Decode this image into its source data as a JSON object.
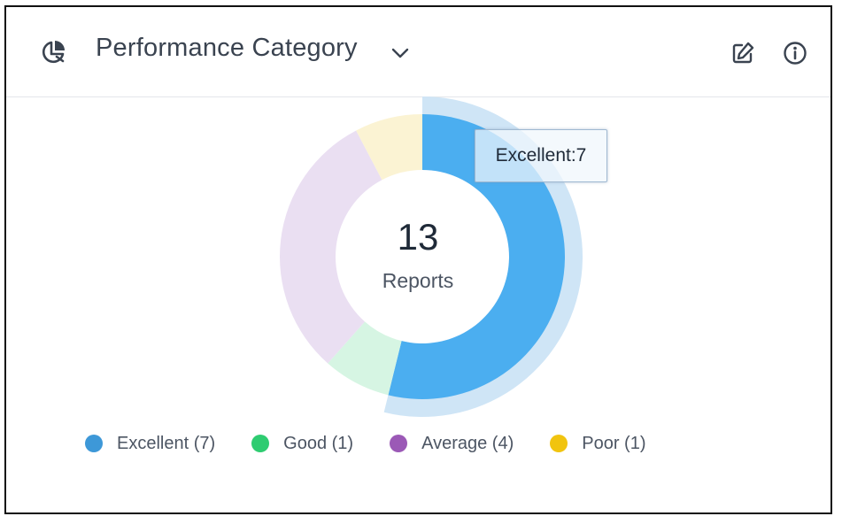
{
  "header": {
    "title": "Performance Category"
  },
  "chart_data": {
    "type": "pie",
    "center_value": "13",
    "center_label": "Reports",
    "slices": [
      {
        "name": "Excellent",
        "value": 7,
        "color": "#4baef0",
        "legend": "Excellent (7)",
        "legend_color": "#3d98d8"
      },
      {
        "name": "Good",
        "value": 1,
        "color": "#d6f5e3",
        "legend": "Good (1)",
        "legend_color": "#2ecc71"
      },
      {
        "name": "Average",
        "value": 4,
        "color": "#eadff2",
        "legend": "Average (4)",
        "legend_color": "#9b59b6"
      },
      {
        "name": "Poor",
        "value": 1,
        "color": "#fbf3d3",
        "legend": "Poor (1)",
        "legend_color": "#f1c40f"
      }
    ],
    "highlighted": "Excellent",
    "tooltip": "Excellent:7",
    "legend_position": "bottom"
  }
}
